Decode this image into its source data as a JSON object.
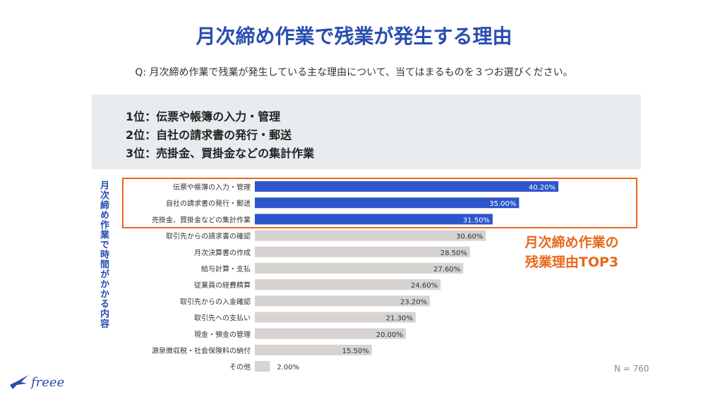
{
  "title": "月次締め作業で残業が発生する理由",
  "question": "Q: 月次締め作業で残業が発生している主な理由について、当てはまるものを３つお選びください。",
  "summary": {
    "lines": [
      "1位：伝票や帳簿の入力・管理",
      "2位：自社の請求書の発行・郵送",
      "3位：売掛金、買掛金などの集計作業"
    ]
  },
  "vertical_label": "月次締め作業で時間がかかる内容",
  "callout": {
    "line1": "月次締め作業の",
    "line2": "残業理由TOP3"
  },
  "note": "N = 760",
  "logo": {
    "text": "freee",
    "icon": "freee-bird-icon"
  },
  "colors": {
    "top": "#2d55cc",
    "other": "#d6d3d1",
    "accent": "#e8681a",
    "title": "#2a4db0"
  },
  "chart_data": {
    "type": "bar",
    "orientation": "horizontal",
    "categories": [
      "伝票や帳簿の入力・管理",
      "自社の請求書の発行・郵送",
      "売掛金、買掛金などの集計作業",
      "取引先からの請求書の確認",
      "月次決算書の作成",
      "給与計算・支払",
      "従業員の経費精算",
      "取引先からの入金確認",
      "取引先への支払い",
      "現金・預金の管理",
      "源泉徴収税・社会保険料の納付",
      "その他"
    ],
    "values": [
      40.2,
      35.0,
      31.5,
      30.6,
      28.5,
      27.6,
      24.6,
      23.2,
      21.3,
      20.0,
      15.5,
      2.0
    ],
    "value_labels": [
      "40.20%",
      "35.00%",
      "31.50%",
      "30.60%",
      "28.50%",
      "27.60%",
      "24.60%",
      "23.20%",
      "21.30%",
      "20.00%",
      "15.50%",
      "2.00%"
    ],
    "highlight_top": 3,
    "xlim": [
      0,
      50
    ],
    "title": "",
    "xlabel": "",
    "ylabel": "月次締め作業で時間がかかる内容",
    "grid": false,
    "legend": "none"
  }
}
